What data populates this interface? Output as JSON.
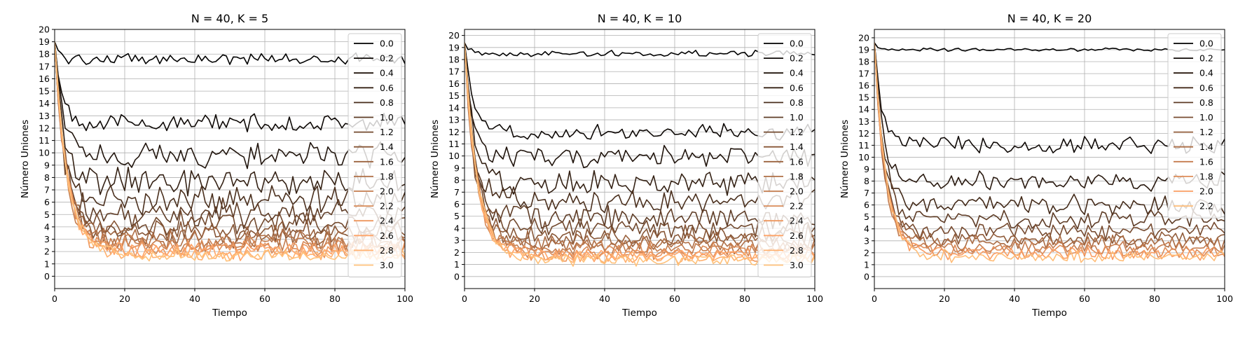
{
  "chart_data": [
    {
      "type": "line",
      "title": "N = 40, K = 5",
      "xlabel": "Tiempo",
      "ylabel": "Número Uniones",
      "xlim": [
        0,
        100
      ],
      "ylim": [
        -1,
        20
      ],
      "xticks": [
        "0",
        "20",
        "40",
        "60",
        "80",
        "100"
      ],
      "yticks": [
        "0",
        "1",
        "2",
        "3",
        "4",
        "5",
        "6",
        "7",
        "8",
        "9",
        "10",
        "11",
        "12",
        "13",
        "14",
        "15",
        "16",
        "17",
        "18",
        "19",
        "20"
      ],
      "grid": true,
      "legend_position": "top-right",
      "series": [
        {
          "name": "0.0",
          "color": "#000000",
          "start": 19,
          "level": 17.6,
          "noise": 0.35
        },
        {
          "name": "0.2",
          "color": "#0d0805",
          "start": 19,
          "level": 12.4,
          "noise": 0.55
        },
        {
          "name": "0.4",
          "color": "#21150d",
          "start": 19,
          "level": 9.8,
          "noise": 0.8
        },
        {
          "name": "0.6",
          "color": "#352215",
          "start": 19,
          "level": 7.7,
          "noise": 0.9
        },
        {
          "name": "0.8",
          "color": "#4a2f1d",
          "start": 19,
          "level": 6.2,
          "noise": 0.9
        },
        {
          "name": "1.0",
          "color": "#5e3c26",
          "start": 19,
          "level": 5.1,
          "noise": 0.85
        },
        {
          "name": "1.2",
          "color": "#72492e",
          "start": 19,
          "level": 4.3,
          "noise": 0.8
        },
        {
          "name": "1.4",
          "color": "#875636",
          "start": 19,
          "level": 3.7,
          "noise": 0.75
        },
        {
          "name": "1.6",
          "color": "#9b633f",
          "start": 19,
          "level": 3.2,
          "noise": 0.7
        },
        {
          "name": "1.8",
          "color": "#b07047",
          "start": 19,
          "level": 2.9,
          "noise": 0.65
        },
        {
          "name": "2.0",
          "color": "#c47d4f",
          "start": 19,
          "level": 2.6,
          "noise": 0.6
        },
        {
          "name": "2.2",
          "color": "#d88a57",
          "start": 19,
          "level": 2.4,
          "noise": 0.55
        },
        {
          "name": "2.4",
          "color": "#ed975f",
          "start": 19,
          "level": 2.2,
          "noise": 0.55
        },
        {
          "name": "2.6",
          "color": "#ffa468",
          "start": 19,
          "level": 2.0,
          "noise": 0.5
        },
        {
          "name": "2.8",
          "color": "#ffb170",
          "start": 19,
          "level": 1.8,
          "noise": 0.45
        },
        {
          "name": "3.0",
          "color": "#ffc17a",
          "start": 19,
          "level": 1.7,
          "noise": 0.4
        }
      ]
    },
    {
      "type": "line",
      "title": "N = 40, K = 10",
      "xlabel": "Tiempo",
      "ylabel": "Número Uniones",
      "xlim": [
        0,
        100
      ],
      "ylim": [
        -1,
        20.5
      ],
      "xticks": [
        "0",
        "20",
        "40",
        "60",
        "80",
        "100"
      ],
      "yticks": [
        "0",
        "1",
        "2",
        "3",
        "4",
        "5",
        "6",
        "7",
        "8",
        "9",
        "10",
        "11",
        "12",
        "13",
        "14",
        "15",
        "16",
        "17",
        "18",
        "19",
        "20"
      ],
      "grid": true,
      "legend_position": "top-right",
      "series": [
        {
          "name": "0.0",
          "color": "#000000",
          "start": 19.4,
          "level": 18.5,
          "noise": 0.2
        },
        {
          "name": "0.2",
          "color": "#0d0805",
          "start": 19.4,
          "level": 12.0,
          "noise": 0.5
        },
        {
          "name": "0.4",
          "color": "#21150d",
          "start": 19.4,
          "level": 9.9,
          "noise": 0.7
        },
        {
          "name": "0.6",
          "color": "#352215",
          "start": 19.4,
          "level": 7.8,
          "noise": 0.75
        },
        {
          "name": "0.8",
          "color": "#4a2f1d",
          "start": 19.4,
          "level": 6.3,
          "noise": 0.75
        },
        {
          "name": "1.0",
          "color": "#5e3c26",
          "start": 19.4,
          "level": 4.9,
          "noise": 0.7
        },
        {
          "name": "1.2",
          "color": "#72492e",
          "start": 19.4,
          "level": 4.0,
          "noise": 0.7
        },
        {
          "name": "1.4",
          "color": "#875636",
          "start": 19.4,
          "level": 3.4,
          "noise": 0.65
        },
        {
          "name": "1.6",
          "color": "#9b633f",
          "start": 19.4,
          "level": 2.9,
          "noise": 0.6
        },
        {
          "name": "1.8",
          "color": "#b07047",
          "start": 19.4,
          "level": 2.6,
          "noise": 0.55
        },
        {
          "name": "2.0",
          "color": "#c47d4f",
          "start": 19.4,
          "level": 2.3,
          "noise": 0.5
        },
        {
          "name": "2.2",
          "color": "#d88a57",
          "start": 19.4,
          "level": 2.1,
          "noise": 0.5
        },
        {
          "name": "2.4",
          "color": "#ed975f",
          "start": 19.4,
          "level": 1.9,
          "noise": 0.45
        },
        {
          "name": "2.6",
          "color": "#ffa468",
          "start": 19.4,
          "level": 1.7,
          "noise": 0.45
        },
        {
          "name": "2.8",
          "color": "#ffb170",
          "start": 19.4,
          "level": 1.6,
          "noise": 0.4
        },
        {
          "name": "3.0",
          "color": "#ffc17a",
          "start": 19.4,
          "level": 1.4,
          "noise": 0.4
        }
      ]
    },
    {
      "type": "line",
      "title": "N = 40, K = 20",
      "xlabel": "Tiempo",
      "ylabel": "Número Uniones",
      "xlim": [
        0,
        100
      ],
      "ylim": [
        -1,
        20.7
      ],
      "xticks": [
        "0",
        "20",
        "40",
        "60",
        "80",
        "100"
      ],
      "yticks": [
        "0",
        "1",
        "2",
        "3",
        "4",
        "5",
        "6",
        "7",
        "8",
        "9",
        "10",
        "11",
        "12",
        "13",
        "14",
        "15",
        "16",
        "17",
        "18",
        "19",
        "20"
      ],
      "grid": true,
      "legend_position": "top-right",
      "series": [
        {
          "name": "0.0",
          "color": "#000000",
          "start": 19.6,
          "level": 19.0,
          "noise": 0.1
        },
        {
          "name": "0.2",
          "color": "#0f0906",
          "start": 19.6,
          "level": 11.0,
          "noise": 0.55
        },
        {
          "name": "0.4",
          "color": "#29190f",
          "start": 19.6,
          "level": 8.0,
          "noise": 0.6
        },
        {
          "name": "0.6",
          "color": "#432a19",
          "start": 19.6,
          "level": 6.0,
          "noise": 0.65
        },
        {
          "name": "0.8",
          "color": "#5d3b25",
          "start": 19.6,
          "level": 4.8,
          "noise": 0.6
        },
        {
          "name": "1.0",
          "color": "#774b30",
          "start": 19.6,
          "level": 3.8,
          "noise": 0.55
        },
        {
          "name": "1.2",
          "color": "#915c3a",
          "start": 19.6,
          "level": 3.2,
          "noise": 0.5
        },
        {
          "name": "1.4",
          "color": "#ab6c44",
          "start": 19.6,
          "level": 2.8,
          "noise": 0.5
        },
        {
          "name": "1.6",
          "color": "#c57c4f",
          "start": 19.6,
          "level": 2.4,
          "noise": 0.45
        },
        {
          "name": "1.8",
          "color": "#df8d59",
          "start": 19.6,
          "level": 2.1,
          "noise": 0.45
        },
        {
          "name": "2.0",
          "color": "#f99d63",
          "start": 19.6,
          "level": 1.9,
          "noise": 0.4
        },
        {
          "name": "2.2",
          "color": "#ffbd78",
          "start": 19.6,
          "level": 1.7,
          "noise": 0.4
        }
      ]
    }
  ]
}
